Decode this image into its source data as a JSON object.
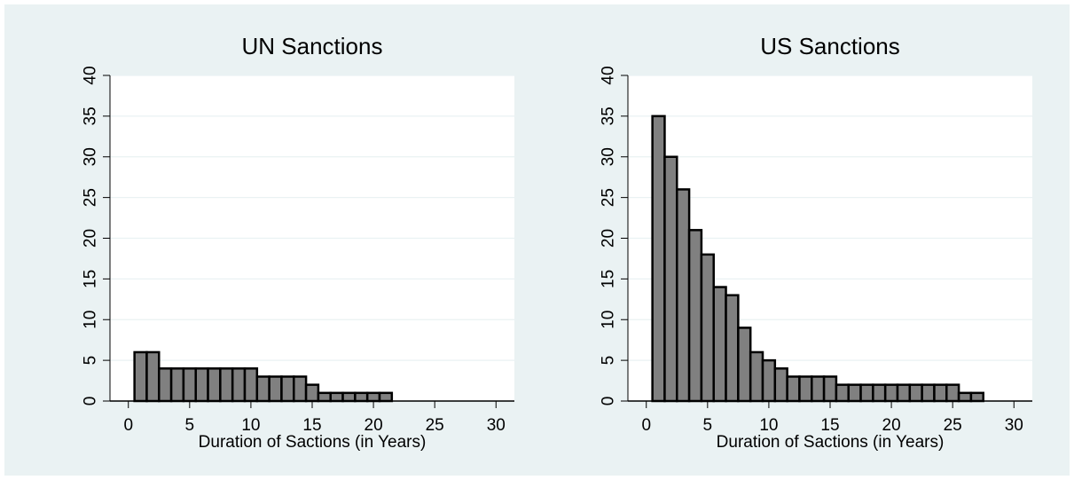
{
  "colors": {
    "background": "#eaf2f3",
    "plot_area": "#ffffff",
    "bar_fill": "#808080",
    "bar_edge": "#000000",
    "grid": "#eaf2f3"
  },
  "chart_data": [
    {
      "type": "bar",
      "title": "UN Sanctions",
      "xlabel": "Duration of Sactions (in Years)",
      "ylabel": "",
      "xlim": [
        -1.5,
        31.5
      ],
      "ylim": [
        0,
        40
      ],
      "xticks": [
        "0",
        "5",
        "10",
        "15",
        "20",
        "25",
        "30"
      ],
      "yticks": [
        "0",
        "5",
        "10",
        "15",
        "20",
        "25",
        "30",
        "35",
        "40"
      ],
      "grid": true,
      "bin_width": 1,
      "bin_left_edges": [
        0.5,
        1.5,
        2.5,
        3.5,
        4.5,
        5.5,
        6.5,
        7.5,
        8.5,
        9.5,
        10.5,
        11.5,
        12.5,
        13.5,
        14.5,
        15.5,
        16.5,
        17.5,
        18.5,
        19.5,
        20.5
      ],
      "values": [
        6,
        6,
        4,
        4,
        4,
        4,
        4,
        4,
        4,
        4,
        3,
        3,
        3,
        3,
        2,
        1,
        1,
        1,
        1,
        1,
        1
      ]
    },
    {
      "type": "bar",
      "title": "US Sanctions",
      "xlabel": "Duration of Sactions (in Years)",
      "ylabel": "",
      "xlim": [
        -1.5,
        31.5
      ],
      "ylim": [
        0,
        40
      ],
      "xticks": [
        "0",
        "5",
        "10",
        "15",
        "20",
        "25",
        "30"
      ],
      "yticks": [
        "0",
        "5",
        "10",
        "15",
        "20",
        "25",
        "30",
        "35",
        "40"
      ],
      "grid": true,
      "bin_width": 1,
      "bin_left_edges": [
        0.5,
        1.5,
        2.5,
        3.5,
        4.5,
        5.5,
        6.5,
        7.5,
        8.5,
        9.5,
        10.5,
        11.5,
        12.5,
        13.5,
        14.5,
        15.5,
        16.5,
        17.5,
        18.5,
        19.5,
        20.5,
        21.5,
        22.5,
        23.5,
        24.5,
        25.5,
        26.5
      ],
      "values": [
        35,
        30,
        26,
        21,
        18,
        14,
        13,
        9,
        6,
        5,
        4,
        3,
        3,
        3,
        3,
        2,
        2,
        2,
        2,
        2,
        2,
        2,
        2,
        2,
        2,
        1,
        1
      ]
    }
  ]
}
